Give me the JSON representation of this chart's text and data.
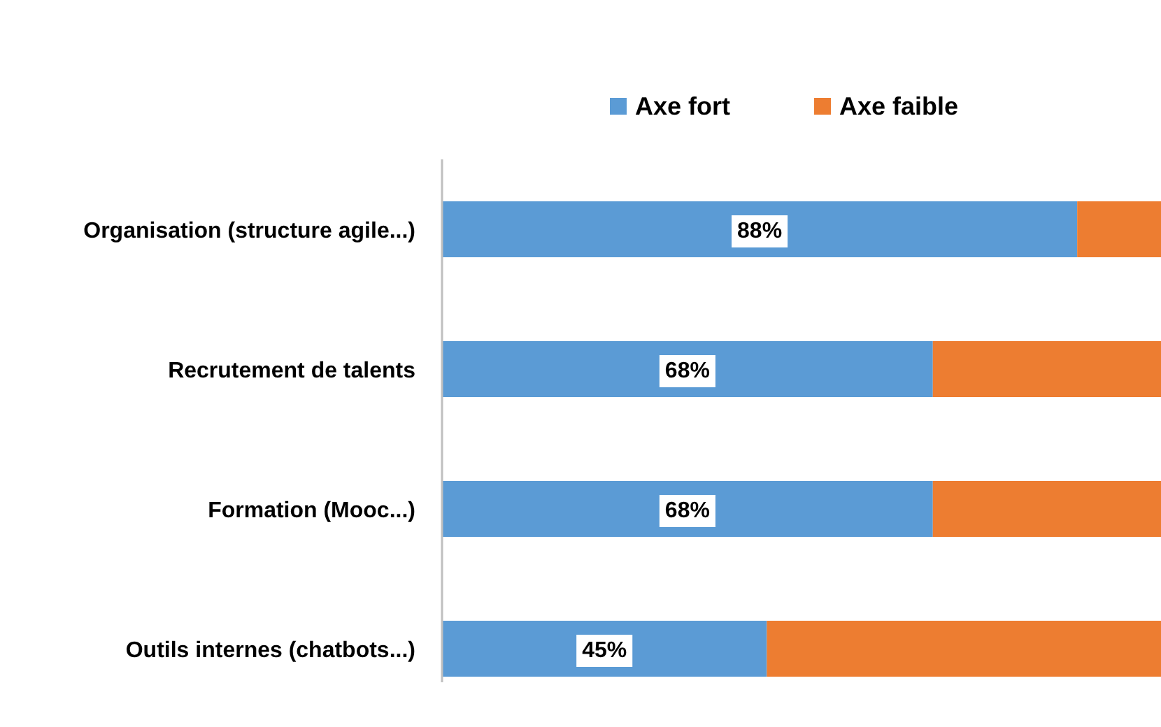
{
  "chart_data": {
    "type": "bar",
    "orientation": "horizontal",
    "stacked": true,
    "legend": "top",
    "categories": [
      "Organisation (structure agile...)",
      "Recrutement de talents",
      "Formation (Mooc...)",
      "Outils internes (chatbots...)"
    ],
    "series": [
      {
        "name": "Axe fort",
        "color": "#5b9bd5",
        "values": [
          88,
          68,
          68,
          45
        ],
        "value_labels": [
          "88%",
          "68%",
          "68%",
          "45%"
        ]
      },
      {
        "name": "Axe faible",
        "color": "#ed7d31",
        "values": [
          12,
          32,
          32,
          55
        ]
      }
    ]
  }
}
